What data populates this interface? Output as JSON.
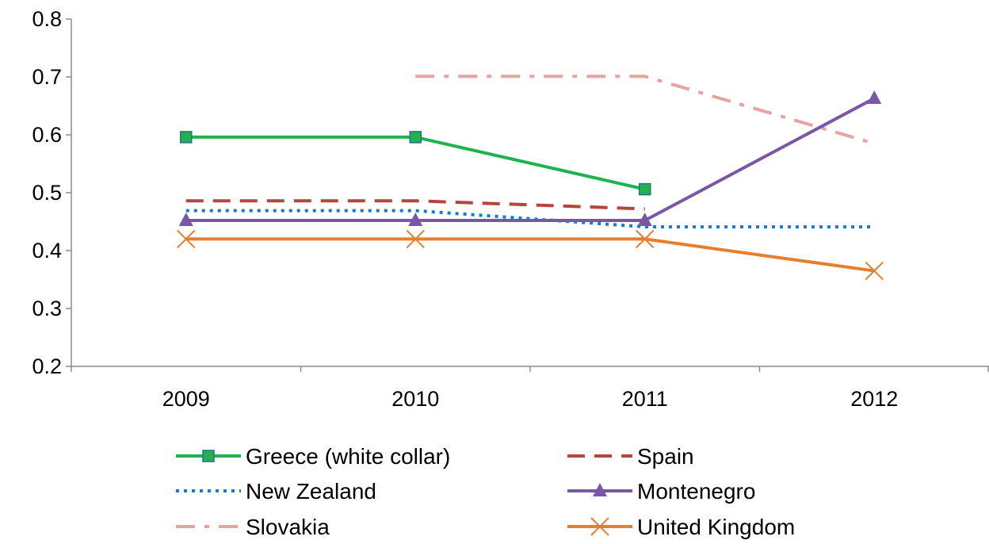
{
  "chart_data": {
    "type": "line",
    "title": "",
    "xlabel": "",
    "ylabel": "",
    "categories": [
      "2009",
      "2010",
      "2011",
      "2012"
    ],
    "ylim": [
      0.2,
      0.8
    ],
    "yticks": [
      "0.2",
      "0.3",
      "0.4",
      "0.5",
      "0.6",
      "0.7",
      "0.8"
    ],
    "grid": false,
    "legend_position": "bottom",
    "series": [
      {
        "name": "Greece (white collar)",
        "values": [
          0.596,
          0.596,
          0.506,
          null
        ],
        "color": "#1fb34f",
        "dash": "solid",
        "marker": "square"
      },
      {
        "name": "Spain",
        "values": [
          0.486,
          0.486,
          0.472,
          null
        ],
        "color": "#b5443c",
        "dash": "dashed",
        "marker": "none"
      },
      {
        "name": "New Zealand",
        "values": [
          0.469,
          0.469,
          0.441,
          0.441
        ],
        "color": "#0e7fd0",
        "dash": "dotted",
        "marker": "none"
      },
      {
        "name": "Montenegro",
        "values": [
          0.452,
          0.452,
          0.452,
          0.663
        ],
        "color": "#7a57a6",
        "dash": "solid",
        "marker": "triangle"
      },
      {
        "name": "Slovakia",
        "values": [
          null,
          0.701,
          0.701,
          0.585
        ],
        "color": "#e6a3a0",
        "dash": "dashdot",
        "marker": "none"
      },
      {
        "name": "United Kingdom",
        "values": [
          0.42,
          0.42,
          0.42,
          0.365
        ],
        "color": "#e87e2c",
        "dash": "solid",
        "marker": "x"
      }
    ]
  }
}
